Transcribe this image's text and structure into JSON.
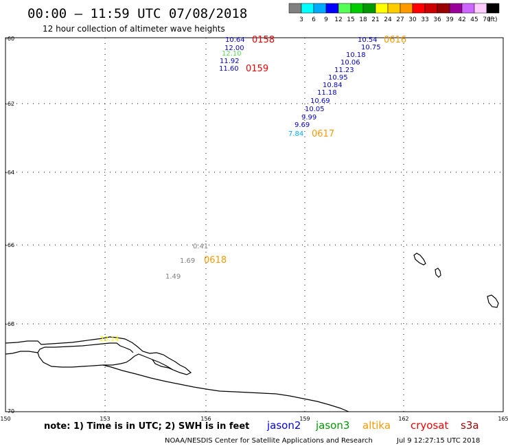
{
  "header": {
    "title": "00:00 – 11:59 UTC 07/08/2018",
    "subtitle": "12 hour collection of altimeter wave heights"
  },
  "legend": {
    "swatch_colors": [
      "#808080",
      "#00ffff",
      "#00aaff",
      "#0000ff",
      "#55ff55",
      "#00cc00",
      "#009900",
      "#ffff00",
      "#ffcc00",
      "#ff9900",
      "#ff0000",
      "#cc0000",
      "#990000",
      "#990099",
      "#cc66ff",
      "#ffccff",
      "#000000"
    ],
    "labels": [
      "3",
      "6",
      "9",
      "12",
      "15",
      "18",
      "21",
      "24",
      "27",
      "30",
      "33",
      "36",
      "39",
      "42",
      "45",
      "70"
    ],
    "unit": "(ft)"
  },
  "axes": {
    "lat_labels": [
      "-60",
      "-62",
      "-64",
      "-66",
      "-68",
      "-70"
    ],
    "lon_labels": [
      "150",
      "153",
      "156",
      "159",
      "162",
      "165"
    ]
  },
  "observations": [
    {
      "text": "10.64",
      "color": "#0000cc"
    },
    {
      "text": "12.00",
      "color": "#0000cc"
    },
    {
      "text": "12.10",
      "color": "#55dd55"
    },
    {
      "text": "11.92",
      "color": "#0000cc"
    },
    {
      "text": "11.60",
      "color": "#0000cc"
    },
    {
      "text": "10.54",
      "color": "#0000cc"
    },
    {
      "text": "10.75",
      "color": "#0000cc"
    },
    {
      "text": "10.18",
      "color": "#0000cc"
    },
    {
      "text": "10.06",
      "color": "#0000cc"
    },
    {
      "text": "11.23",
      "color": "#0000cc"
    },
    {
      "text": "10.95",
      "color": "#0000cc"
    },
    {
      "text": "10.84",
      "color": "#0000cc"
    },
    {
      "text": "11.18",
      "color": "#0000cc"
    },
    {
      "text": "10.69",
      "color": "#0000cc"
    },
    {
      "text": "10.05",
      "color": "#0000cc"
    },
    {
      "text": "9.99",
      "color": "#0000cc"
    },
    {
      "text": "9.69",
      "color": "#0000cc"
    },
    {
      "text": "7.84",
      "color": "#00aaff"
    },
    {
      "text": "0.41",
      "color": "#808080"
    },
    {
      "text": "1.69",
      "color": "#808080"
    },
    {
      "text": "1.49",
      "color": "#808080"
    },
    {
      "text": "23.14",
      "color": "#ffff00"
    }
  ],
  "pass_times": [
    {
      "text": "0158",
      "color": "#ee0000"
    },
    {
      "text": "0159",
      "color": "#ee0000"
    },
    {
      "text": "0616",
      "color": "#ff9900"
    },
    {
      "text": "0617",
      "color": "#ff9900"
    },
    {
      "text": "0618",
      "color": "#ff9900"
    }
  ],
  "footer": {
    "note": "note:  1) Time is in UTC;  2) SWH is in feet",
    "satellites": [
      {
        "name": "jason2",
        "color": "#0000ee"
      },
      {
        "name": "jason3",
        "color": "#009900"
      },
      {
        "name": "altika",
        "color": "#ff9900"
      },
      {
        "name": "cryosat",
        "color": "#ee0000"
      },
      {
        "name": "s3a",
        "color": "#990000"
      }
    ],
    "credit": "NOAA/NESDIS Center for Satellite Applications and Research",
    "timestamp": "Jul  9 12:27:15 UTC 2018"
  }
}
